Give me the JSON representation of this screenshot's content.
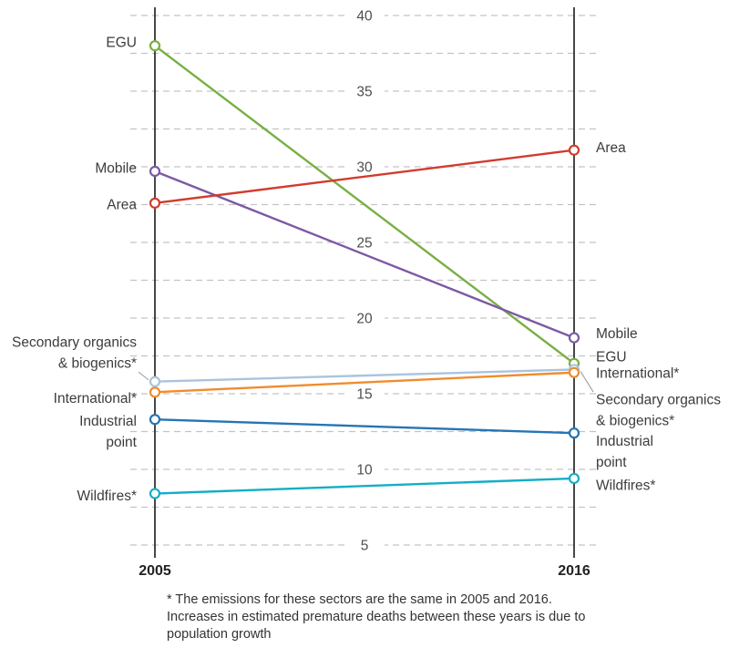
{
  "chart_data": {
    "type": "line",
    "subtype": "slopegraph",
    "x_categories": [
      "2005",
      "2016"
    ],
    "yticks": [
      40,
      35,
      30,
      25,
      20,
      15,
      10,
      5
    ],
    "minor_grid_step": 2.5,
    "ylim": [
      4.5,
      41
    ],
    "grid": true,
    "series": [
      {
        "name": "EGU",
        "color": "#77b043",
        "values": [
          38,
          17
        ],
        "left_label": {
          "lines": [
            "EGU"
          ],
          "dy": -3
        },
        "right_label": {
          "lines": [
            "EGU"
          ],
          "dy": -7
        }
      },
      {
        "name": "Mobile",
        "color": "#7b5aa3",
        "values": [
          29.7,
          18.7
        ],
        "left_label": {
          "lines": [
            "Mobile"
          ],
          "dy": -3
        },
        "right_label": {
          "lines": [
            "Mobile"
          ],
          "dy": -4
        }
      },
      {
        "name": "Area",
        "color": "#d23b2e",
        "values": [
          27.6,
          31.1
        ],
        "left_label": {
          "lines": [
            "Area"
          ],
          "dy": 2
        },
        "right_label": {
          "lines": [
            "Area"
          ],
          "dy": -2
        }
      },
      {
        "name": "Secondary organics & biogenics*",
        "color": "#aac4de",
        "values": [
          15.8,
          16.6
        ],
        "left_label": {
          "lines": [
            "Secondary organics",
            "& biogenics*"
          ],
          "dy": -31,
          "connector": true
        },
        "right_label": {
          "lines": [
            "Secondary organics",
            "& biogenics*"
          ],
          "dy": 45,
          "connector": true
        }
      },
      {
        "name": "International*",
        "color": "#f08c2d",
        "values": [
          15.1,
          16.4
        ],
        "left_label": {
          "lines": [
            "International*"
          ],
          "dy": 7
        },
        "right_label": {
          "lines": [
            "International*"
          ],
          "dy": 1
        }
      },
      {
        "name": "Industrial point",
        "color": "#2575b5",
        "values": [
          13.3,
          12.4
        ],
        "left_label": {
          "lines": [
            "Industrial",
            "point"
          ],
          "dy": 14
        },
        "right_label": {
          "lines": [
            "Industrial",
            "point"
          ],
          "dy": 21
        }
      },
      {
        "name": "Wildfires*",
        "color": "#13aec6",
        "values": [
          8.4,
          9.4
        ],
        "left_label": {
          "lines": [
            "Wildfires*"
          ],
          "dy": 3
        },
        "right_label": {
          "lines": [
            "Wildfires*"
          ],
          "dy": 8
        }
      }
    ],
    "footnote_lines": [
      "* The emissions for these sectors are the same in 2005 and 2016.",
      "Increases in estimated premature deaths between these years is due to",
      "population growth"
    ]
  }
}
